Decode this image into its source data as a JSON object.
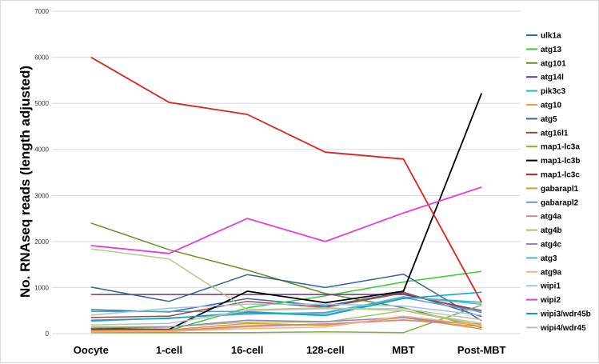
{
  "chart_data": {
    "type": "line",
    "title": "",
    "xlabel": "",
    "ylabel": "No. RNAseq reads (length adjusted)",
    "categories": [
      "Oocyte",
      "1-cell",
      "16-cell",
      "128-cell",
      "MBT",
      "Post-MBT"
    ],
    "ylim": [
      0,
      7000
    ],
    "yticks": [
      0,
      1000,
      2000,
      3000,
      4000,
      5000,
      6000,
      7000
    ],
    "grid": true,
    "legend_position": "right",
    "series": [
      {
        "name": "ulk1a",
        "color": "#2e6da4",
        "values": [
          520,
          470,
          760,
          600,
          900,
          370
        ]
      },
      {
        "name": "atg13",
        "color": "#33cc33",
        "values": [
          60,
          70,
          560,
          820,
          1120,
          1350
        ]
      },
      {
        "name": "atg101",
        "color": "#6b8e23",
        "values": [
          2400,
          1820,
          1380,
          870,
          560,
          130
        ]
      },
      {
        "name": "atg14l",
        "color": "#6a3d7c",
        "values": [
          850,
          850,
          850,
          850,
          850,
          500
        ]
      },
      {
        "name": "pik3c3",
        "color": "#2ab3c4",
        "values": [
          480,
          480,
          480,
          400,
          790,
          680
        ]
      },
      {
        "name": "atg10",
        "color": "#f39c3a",
        "values": [
          30,
          40,
          150,
          200,
          300,
          150
        ]
      },
      {
        "name": "atg5",
        "color": "#336699",
        "values": [
          1010,
          700,
          1280,
          1000,
          1290,
          280
        ]
      },
      {
        "name": "atg16l1",
        "color": "#a8443a",
        "values": [
          350,
          380,
          700,
          570,
          880,
          460
        ]
      },
      {
        "name": "map1-lc3a",
        "color": "#80b040",
        "values": [
          20,
          20,
          20,
          40,
          20,
          620
        ]
      },
      {
        "name": "map1-lc3b",
        "color": "#000000",
        "values": [
          100,
          90,
          920,
          670,
          920,
          5220
        ]
      },
      {
        "name": "map1-lc3c",
        "color": "#d9231b",
        "values": [
          6000,
          5020,
          4760,
          3940,
          3790,
          680
        ]
      },
      {
        "name": "gabarapl1",
        "color": "#e69138",
        "values": [
          80,
          80,
          220,
          180,
          350,
          100
        ]
      },
      {
        "name": "gabarapl2",
        "color": "#6699cc",
        "values": [
          270,
          340,
          420,
          460,
          780,
          470
        ]
      },
      {
        "name": "atg4a",
        "color": "#cc8888",
        "values": [
          50,
          60,
          170,
          210,
          290,
          210
        ]
      },
      {
        "name": "atg4b",
        "color": "#a3c760",
        "values": [
          150,
          150,
          250,
          250,
          500,
          180
        ]
      },
      {
        "name": "atg4c",
        "color": "#9a7fc4",
        "values": [
          120,
          140,
          290,
          260,
          350,
          180
        ]
      },
      {
        "name": "atg3",
        "color": "#4fb8c8",
        "values": [
          290,
          330,
          450,
          440,
          800,
          640
        ]
      },
      {
        "name": "atg9a",
        "color": "#f4b183",
        "values": [
          40,
          50,
          110,
          140,
          380,
          180
        ]
      },
      {
        "name": "wipi1",
        "color": "#9dc3e6",
        "values": [
          400,
          550,
          640,
          640,
          600,
          400
        ]
      },
      {
        "name": "wipi2",
        "color": "#e040d8",
        "values": [
          1910,
          1740,
          2500,
          2000,
          2620,
          3180
        ]
      },
      {
        "name": "wipi3/wdr45b",
        "color": "#0aa0c8",
        "values": [
          290,
          330,
          460,
          390,
          760,
          900
        ]
      },
      {
        "name": "wipi4/wdr45",
        "color": "#bfbfbf",
        "values": [
          190,
          220,
          500,
          540,
          540,
          300
        ]
      },
      {
        "name": "",
        "color": "#b5c98a",
        "values": [
          1840,
          1620,
          520,
          560,
          500,
          220
        ]
      }
    ]
  }
}
